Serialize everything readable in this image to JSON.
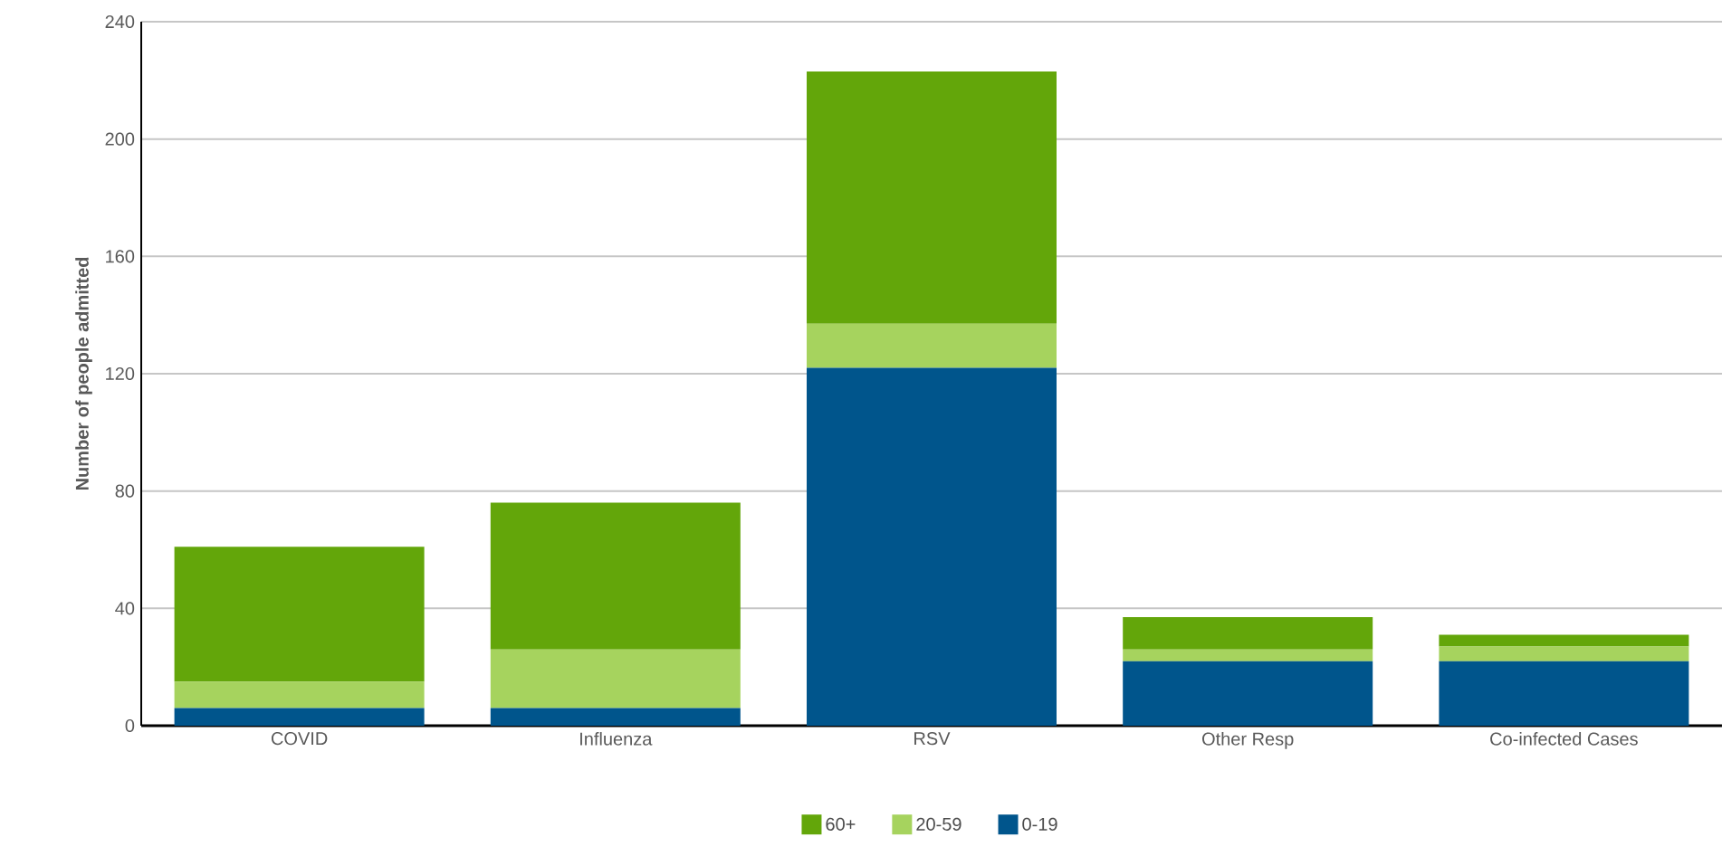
{
  "chart_data": {
    "type": "bar",
    "stacked": true,
    "ylabel": "Number of people admitted",
    "categories": [
      "COVID",
      "Influenza",
      "RSV",
      "Other Resp",
      "Co-infected Cases"
    ],
    "series": [
      {
        "name": "0-19",
        "color": "#00558c",
        "values": [
          6,
          6,
          122,
          22,
          22
        ]
      },
      {
        "name": "20-59",
        "color": "#a6d35e",
        "values": [
          9,
          20,
          15,
          4,
          5
        ]
      },
      {
        "name": "60+",
        "color": "#63a60a",
        "values": [
          46,
          50,
          86,
          11,
          4
        ]
      }
    ],
    "ylim": [
      0,
      240
    ],
    "yticks": [
      0,
      40,
      80,
      120,
      160,
      200,
      240
    ],
    "grid": "y",
    "legend": "bottom"
  }
}
